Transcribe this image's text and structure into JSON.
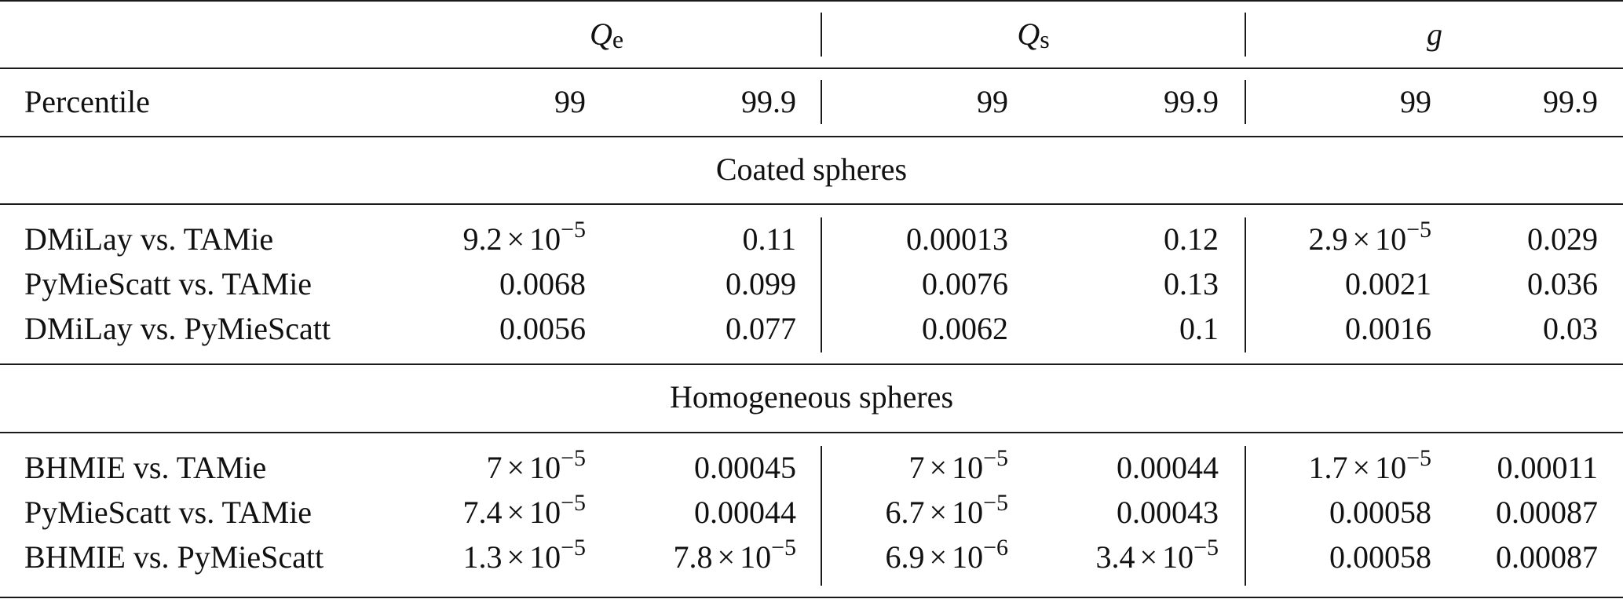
{
  "header": {
    "groups": [
      {
        "symbol": "Q",
        "subscript": "e"
      },
      {
        "symbol": "Q",
        "subscript": "s"
      },
      {
        "symbol": "g",
        "subscript": ""
      }
    ],
    "percentile_label": "Percentile",
    "percentiles": [
      "99",
      "99.9",
      "99",
      "99.9",
      "99",
      "99.9"
    ]
  },
  "sections": [
    {
      "title": "Coated spheres",
      "rows": [
        {
          "label": "DMiLay vs. TAMie",
          "values": [
            {
              "m": "9.2",
              "e": "−5"
            },
            {
              "v": "0.11"
            },
            {
              "v": "0.00013"
            },
            {
              "v": "0.12"
            },
            {
              "m": "2.9",
              "e": "−5"
            },
            {
              "v": "0.029"
            }
          ]
        },
        {
          "label": "PyMieScatt vs. TAMie",
          "values": [
            {
              "v": "0.0068"
            },
            {
              "v": "0.099"
            },
            {
              "v": "0.0076"
            },
            {
              "v": "0.13"
            },
            {
              "v": "0.0021"
            },
            {
              "v": "0.036"
            }
          ]
        },
        {
          "label": "DMiLay vs. PyMieScatt",
          "values": [
            {
              "v": "0.0056"
            },
            {
              "v": "0.077"
            },
            {
              "v": "0.0062"
            },
            {
              "v": "0.1"
            },
            {
              "v": "0.0016"
            },
            {
              "v": "0.03"
            }
          ]
        }
      ]
    },
    {
      "title": "Homogeneous spheres",
      "rows": [
        {
          "label": "BHMIE vs. TAMie",
          "values": [
            {
              "m": "7",
              "e": "−5"
            },
            {
              "v": "0.00045"
            },
            {
              "m": "7",
              "e": "−5"
            },
            {
              "v": "0.00044"
            },
            {
              "m": "1.7",
              "e": "−5"
            },
            {
              "v": "0.00011"
            }
          ]
        },
        {
          "label": "PyMieScatt vs. TAMie",
          "values": [
            {
              "m": "7.4",
              "e": "−5"
            },
            {
              "v": "0.00044"
            },
            {
              "m": "6.7",
              "e": "−5"
            },
            {
              "v": "0.00043"
            },
            {
              "v": "0.00058"
            },
            {
              "v": "0.00087"
            }
          ]
        },
        {
          "label": "BHMIE vs. PyMieScatt",
          "values": [
            {
              "m": "1.3",
              "e": "−5"
            },
            {
              "m": "7.8",
              "e": "−5"
            },
            {
              "m": "6.9",
              "e": "−6"
            },
            {
              "m": "3.4",
              "e": "−5"
            },
            {
              "v": "0.00058"
            },
            {
              "v": "0.00087"
            }
          ]
        }
      ]
    }
  ],
  "sci_base": "10",
  "times_sign": "×"
}
